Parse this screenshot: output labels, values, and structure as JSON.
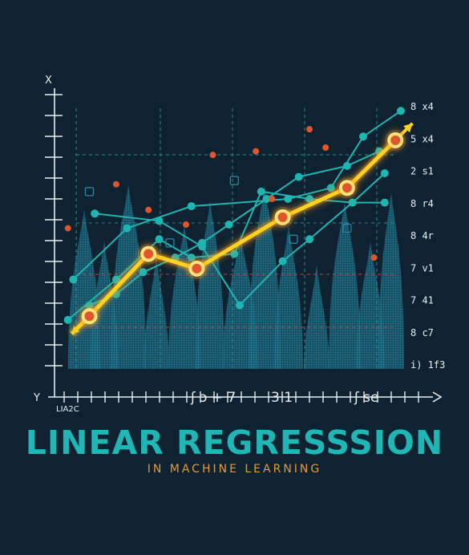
{
  "title": "LINEAR REGRESSSION",
  "subtitle": "IN MACHINE LEARNING",
  "colors": {
    "background": "#0f2231",
    "title": "#20b6b6",
    "subtitle": "#e59a3b",
    "regression_line": "#ffd21f",
    "regression_glow": "#ff9a1a",
    "teal_series": "#1fb5b0",
    "dashed_grid": "#2c8f8a",
    "red_grid": "#b44a2f",
    "scatter_orange": "#e0552b",
    "density_fill": "#1e6f8a",
    "axis": "#e8eef0"
  },
  "chart_data": {
    "type": "line",
    "title": "LINEAR REGRESSSION",
    "subtitle": "IN MACHINE LEARNING",
    "axis_letters": {
      "y_top": "X",
      "x_left": "Y"
    },
    "x_tick_text": [
      "LIA2C",
      "ʃ ɔ + 7",
      "3 1",
      "ʃ se"
    ],
    "y_right_labels": [
      "8 x4",
      "5 x4",
      "2 s1",
      "8 r4",
      "8 4r",
      "7 v1",
      "7 41",
      "8 c7",
      "i) 1f3"
    ],
    "grid": true,
    "series": [
      {
        "name": "",
        "style": "regression",
        "x": [
          0.5,
          1.6,
          2.5,
          4.1,
          5.3,
          6.2
        ],
        "y": [
          1.0,
          2.7,
          2.3,
          3.7,
          4.5,
          5.8
        ]
      },
      {
        "name": "",
        "style": "teal",
        "x": [
          0.2,
          1.2,
          2.4,
          4.2,
          5.0,
          5.6,
          6.3
        ],
        "y": [
          2.0,
          3.4,
          4.0,
          4.2,
          4.5,
          5.9,
          6.6
        ]
      },
      {
        "name": "",
        "style": "teal",
        "x": [
          0.5,
          1.0,
          1.5,
          2.1,
          2.6,
          3.1,
          3.8,
          4.4,
          5.3,
          5.9
        ],
        "y": [
          1.3,
          1.6,
          2.2,
          2.6,
          3.0,
          3.5,
          4.2,
          4.8,
          5.1,
          5.5
        ]
      },
      {
        "name": "",
        "style": "teal",
        "x": [
          0.6,
          1.8,
          2.6,
          3.3,
          4.1,
          4.6,
          5.4,
          6.0
        ],
        "y": [
          3.8,
          3.6,
          2.9,
          1.3,
          2.5,
          3.1,
          4.1,
          4.9
        ]
      },
      {
        "name": "",
        "style": "teal",
        "x": [
          0.1,
          1.0,
          1.8,
          2.4,
          3.2,
          3.7,
          4.6,
          5.4,
          6.0
        ],
        "y": [
          0.9,
          2.0,
          3.1,
          2.6,
          2.7,
          4.4,
          4.2,
          4.1,
          4.1
        ]
      }
    ],
    "scatter_points": {
      "x": [
        0.1,
        0.5,
        1.0,
        1.6,
        2.0,
        2.3,
        2.8,
        3.2,
        3.6,
        3.9,
        4.3,
        4.6,
        4.9,
        5.3,
        5.8
      ],
      "y": [
        3.4,
        4.4,
        4.6,
        3.9,
        3.0,
        3.5,
        5.4,
        4.7,
        5.5,
        4.2,
        3.1,
        6.1,
        5.6,
        3.4,
        2.6
      ]
    },
    "xlim": [
      0,
      6.6
    ],
    "ylim": [
      0,
      7
    ]
  }
}
